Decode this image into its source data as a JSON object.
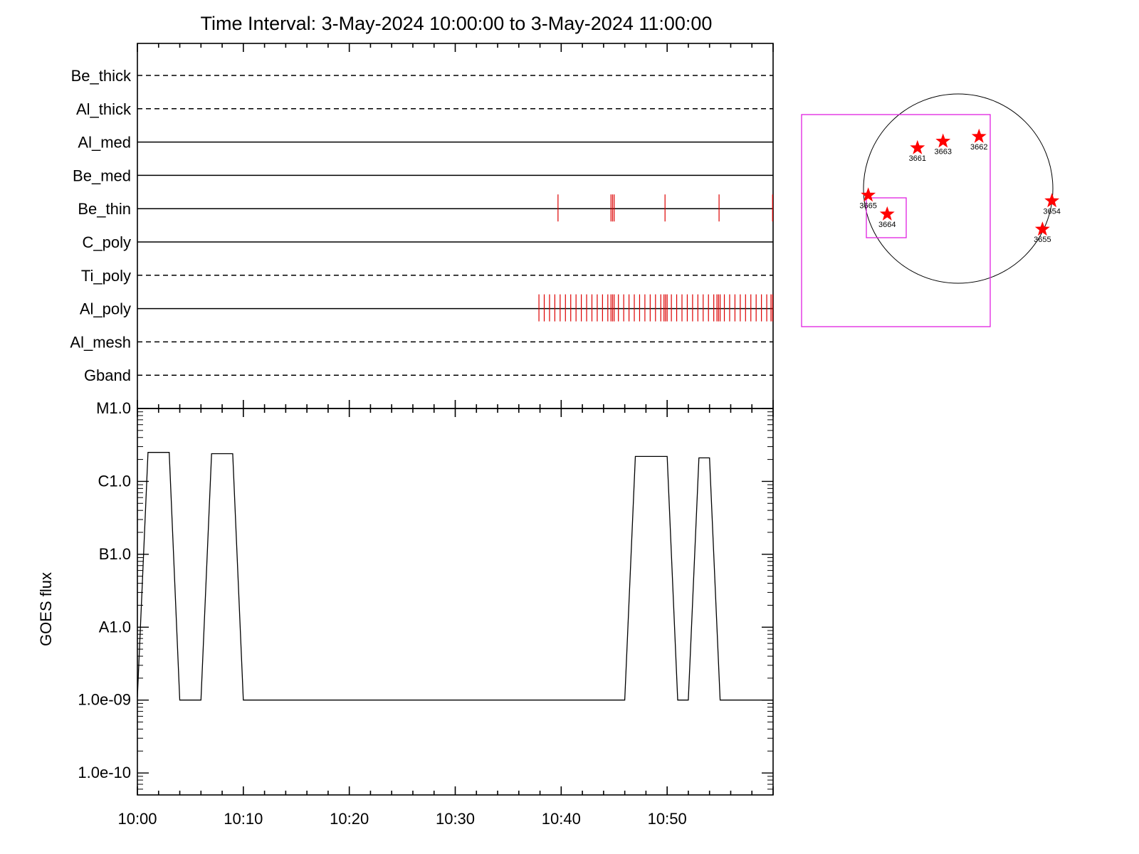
{
  "title": "Time Interval:  3-May-2024 10:00:00 to  3-May-2024 11:00:00",
  "colors": {
    "axis": "#000000",
    "events": "#dd0000",
    "stars": "#ff0000",
    "box": "#e020e0"
  },
  "chart_data": [
    {
      "type": "event-timeline",
      "time_range": [
        "10:00",
        "11:00"
      ],
      "channels": [
        {
          "label": "Be_thick",
          "style": "dashed",
          "events": []
        },
        {
          "label": "Al_thick",
          "style": "dashed",
          "events": []
        },
        {
          "label": "Al_med",
          "style": "solid",
          "events": []
        },
        {
          "label": "Be_med",
          "style": "solid",
          "events": []
        },
        {
          "label": "Be_thin",
          "style": "solid",
          "events": [
            39.7,
            44.7,
            44.85,
            45.0,
            49.8,
            54.9,
            59.95
          ]
        },
        {
          "label": "C_poly",
          "style": "solid",
          "events": []
        },
        {
          "label": "Ti_poly",
          "style": "dashed",
          "events": []
        },
        {
          "label": "Al_poly",
          "style": "solid",
          "events": [
            37.9,
            38.4,
            38.9,
            39.4,
            39.9,
            40.4,
            40.9,
            41.4,
            41.9,
            42.4,
            42.9,
            43.4,
            43.9,
            44.4,
            44.7,
            44.85,
            45.0,
            45.4,
            45.9,
            46.4,
            46.9,
            47.4,
            47.9,
            48.4,
            48.9,
            49.4,
            49.7,
            49.85,
            50.0,
            50.4,
            50.9,
            51.4,
            51.9,
            52.4,
            52.9,
            53.4,
            53.9,
            54.4,
            54.7,
            54.85,
            55.0,
            55.4,
            55.9,
            56.4,
            56.9,
            57.4,
            57.9,
            58.4,
            58.9,
            59.4,
            59.8,
            59.95
          ]
        },
        {
          "label": "Al_mesh",
          "style": "dashed",
          "events": []
        },
        {
          "label": "Gband",
          "style": "dashed",
          "events": []
        }
      ]
    },
    {
      "type": "line",
      "ylabel": "GOES flux",
      "y_scale": "log",
      "ylim": [
        5e-11,
        1e-05
      ],
      "y_ticks": [
        {
          "label": "1.0e-10",
          "value": 1e-10
        },
        {
          "label": "1.0e-09",
          "value": 1e-09
        },
        {
          "label": "A1.0",
          "value": 1e-08
        },
        {
          "label": "B1.0",
          "value": 1e-07
        },
        {
          "label": "C1.0",
          "value": 1e-06
        },
        {
          "label": "M1.0",
          "value": 1e-05
        }
      ],
      "x_ticks": [
        "10:00",
        "10:10",
        "10:20",
        "10:30",
        "10:40",
        "10:50"
      ],
      "x_range_minutes": [
        0,
        60
      ],
      "series": [
        {
          "x": [
            0,
            1,
            3,
            4,
            6,
            7,
            9,
            10,
            46,
            47,
            50,
            51,
            52,
            53,
            54,
            55,
            60
          ],
          "y": [
            1.1e-09,
            2.5e-06,
            2.5e-06,
            1e-09,
            1e-09,
            2.4e-06,
            2.4e-06,
            1e-09,
            1e-09,
            2.2e-06,
            2.2e-06,
            1e-09,
            1e-09,
            2.1e-06,
            2.1e-06,
            1e-09,
            1e-09
          ]
        }
      ]
    },
    {
      "type": "scatter",
      "solar_disk": true,
      "regions": [
        {
          "label": "3661",
          "x": -0.43,
          "y": 0.43
        },
        {
          "label": "3663",
          "x": -0.16,
          "y": 0.5
        },
        {
          "label": "3662",
          "x": 0.22,
          "y": 0.55
        },
        {
          "label": "3665",
          "x": -0.95,
          "y": -0.07
        },
        {
          "label": "3664",
          "x": -0.75,
          "y": -0.27
        },
        {
          "label": "3654",
          "x": 0.99,
          "y": -0.13
        },
        {
          "label": "3655",
          "x": 0.89,
          "y": -0.43
        }
      ]
    }
  ]
}
